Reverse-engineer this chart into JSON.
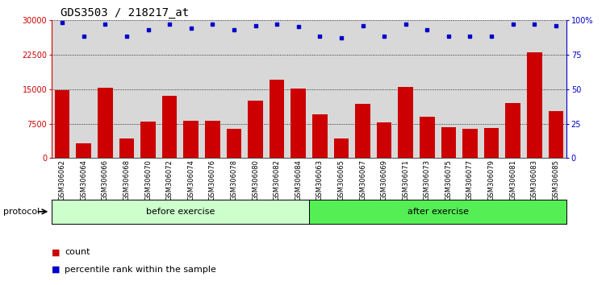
{
  "title": "GDS3503 / 218217_at",
  "categories": [
    "GSM306062",
    "GSM306064",
    "GSM306066",
    "GSM306068",
    "GSM306070",
    "GSM306072",
    "GSM306074",
    "GSM306076",
    "GSM306078",
    "GSM306080",
    "GSM306082",
    "GSM306084",
    "GSM306063",
    "GSM306065",
    "GSM306067",
    "GSM306069",
    "GSM306071",
    "GSM306073",
    "GSM306075",
    "GSM306077",
    "GSM306079",
    "GSM306081",
    "GSM306083",
    "GSM306085"
  ],
  "bar_values": [
    14700,
    3200,
    15200,
    4200,
    8000,
    13600,
    8100,
    8200,
    6400,
    12500,
    17000,
    15100,
    9500,
    4200,
    11800,
    7800,
    15500,
    9000,
    6700,
    6400,
    6600,
    12000,
    23000,
    10300
  ],
  "percentile_values": [
    98,
    88,
    97,
    88,
    93,
    97,
    94,
    97,
    93,
    96,
    97,
    95,
    88,
    87,
    96,
    88,
    97,
    93,
    88,
    88,
    88,
    97,
    97,
    96
  ],
  "bar_color": "#cc0000",
  "percentile_color": "#0000cc",
  "ylim_left": [
    0,
    30000
  ],
  "ylim_right": [
    0,
    100
  ],
  "yticks_left": [
    0,
    7500,
    15000,
    22500,
    30000
  ],
  "yticks_right": [
    0,
    25,
    50,
    75,
    100
  ],
  "ylabel_left_labels": [
    "0",
    "7500",
    "15000",
    "22500",
    "30000"
  ],
  "ylabel_right_labels": [
    "0",
    "25",
    "50",
    "75",
    "100%"
  ],
  "before_count": 12,
  "after_count": 12,
  "protocol_label": "protocol",
  "before_label": "before exercise",
  "after_label": "after exercise",
  "legend_count_label": "count",
  "legend_percentile_label": "percentile rank within the sample",
  "before_color": "#ccffcc",
  "after_color": "#55ee55",
  "plot_bg": "#d8d8d8",
  "title_fontsize": 10,
  "tick_fontsize": 7,
  "bar_width": 0.7
}
